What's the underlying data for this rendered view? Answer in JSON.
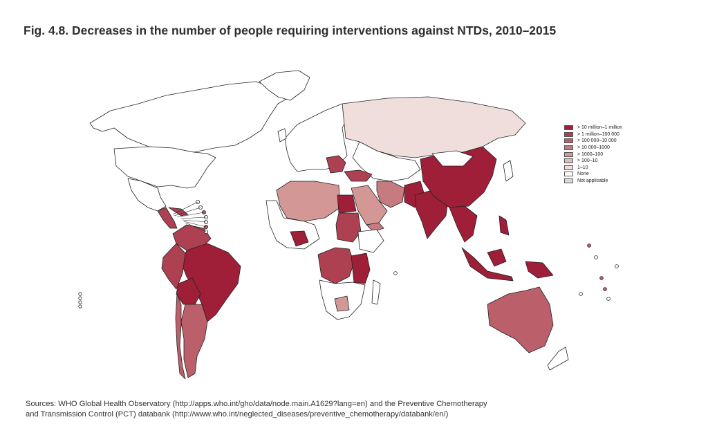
{
  "figure": {
    "title": "Fig. 4.8. Decreases in the number of people requiring interventions against NTDs, 2010–2015"
  },
  "legend": {
    "items": [
      {
        "label": "> 10 million–1 million",
        "color": "#9e1f37"
      },
      {
        "label": "> 1 million–100 000",
        "color": "#ad4152"
      },
      {
        "label": "> 100 000–10 000",
        "color": "#bb5f6b"
      },
      {
        "label": "> 10 000–1000",
        "color": "#c67b80"
      },
      {
        "label": "> 1000–100",
        "color": "#d39896"
      },
      {
        "label": "> 100–10",
        "color": "#e0bcba"
      },
      {
        "label": "1–10",
        "color": "#efdedc"
      },
      {
        "label": "None",
        "color": "#ffffff"
      },
      {
        "label": "Not applicable",
        "color": "#d9d9d9"
      }
    ]
  },
  "sources": {
    "line1": "Sources: WHO Global Health Observatory (http://apps.who.int/gho/data/node.main.A1629?lang=en) and the Preventive Chemotherapy",
    "line2": "and Transmission Control (PCT) databank (http://www.who.int/neglected_diseases/preventive_chemotherapy/databank/en/)"
  }
}
